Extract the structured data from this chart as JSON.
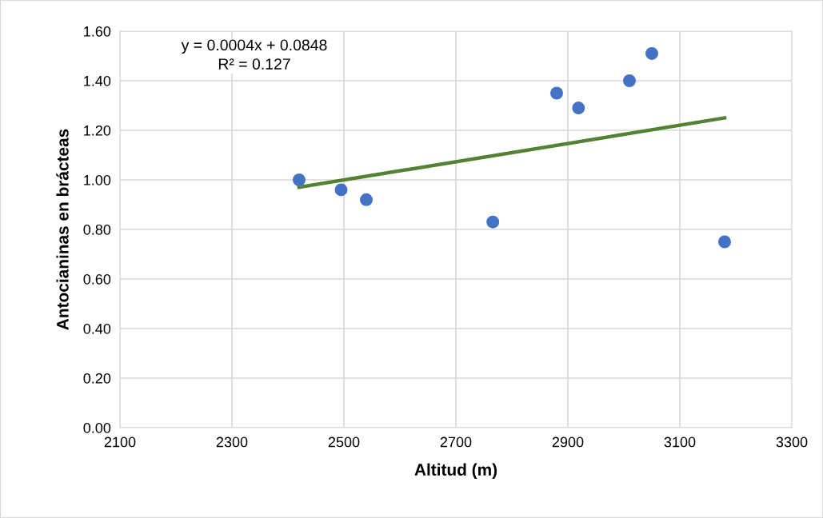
{
  "chart_data": {
    "type": "scatter",
    "xlabel": "Altitud (m)",
    "ylabel": "Antocianinas en brácteas",
    "series": [
      {
        "color": "#4472c4",
        "marker": "circle",
        "x": [
          2420,
          2495,
          2540,
          2766,
          2880,
          2919,
          3010,
          3050,
          3180
        ],
        "values": [
          1.0,
          0.96,
          0.92,
          0.83,
          1.35,
          1.29,
          1.4,
          1.51,
          0.75
        ]
      },
      {
        "type": "line",
        "color": "#548235",
        "marker": "none",
        "line_style": "solid",
        "x": [
          2420,
          3180
        ],
        "values": [
          0.97,
          1.25
        ]
      }
    ],
    "annotations": [
      "y = 0.0004x + 0.0848",
      "R² = 0.127"
    ],
    "xlim": [
      2100,
      3300
    ],
    "xticks": [
      2100,
      2300,
      2500,
      2700,
      2900,
      3100,
      3300
    ],
    "ylim": [
      0,
      1.6
    ],
    "yticks": [
      {
        "value": 0,
        "label": "0.00"
      },
      {
        "value": 0.2,
        "label": "0.20"
      },
      {
        "value": 0.4,
        "label": "0.40"
      },
      {
        "value": 0.6,
        "label": "0.60"
      },
      {
        "value": 0.8,
        "label": "0.80"
      },
      {
        "value": 1.0,
        "label": "1.00"
      },
      {
        "value": 1.2,
        "label": "1.20"
      },
      {
        "value": 1.4,
        "label": "1.40"
      },
      {
        "value": 1.6,
        "label": "1.60"
      }
    ],
    "grid": true,
    "legend": false
  }
}
